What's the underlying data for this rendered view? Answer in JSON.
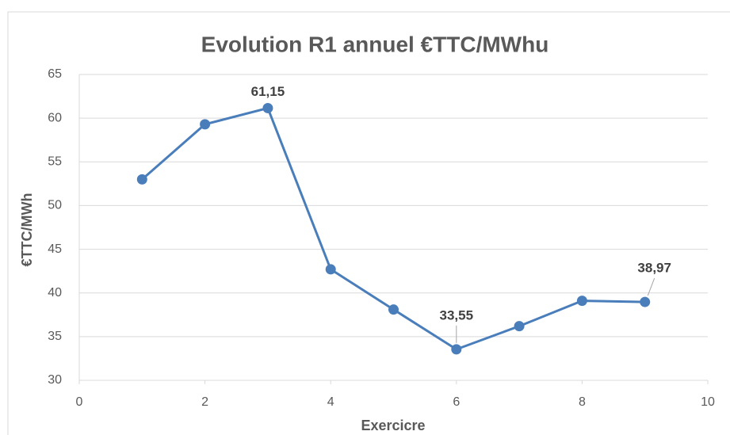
{
  "chart_data": {
    "type": "line",
    "title": "Evolution R1 annuel €TTC/MWhu",
    "x_label": "Exercicre",
    "y_label": "€TTC/MWh",
    "x": [
      1,
      2,
      3,
      4,
      5,
      6,
      7,
      8,
      9
    ],
    "series": [
      {
        "color": "#4a7ebb",
        "values": [
          53,
          59.3,
          61.15,
          42.7,
          38.1,
          33.55,
          36.2,
          39.1,
          38.97
        ],
        "value_labels": [
          null,
          null,
          "61,15",
          null,
          null,
          "33,55",
          null,
          null,
          "38,97"
        ]
      }
    ],
    "xlim": [
      0,
      10
    ],
    "xticks": [
      0,
      2,
      4,
      6,
      8,
      10
    ],
    "ylim": [
      30,
      65
    ],
    "yticks": [
      30,
      35,
      40,
      45,
      50,
      55,
      60,
      65
    ],
    "grid": true
  }
}
